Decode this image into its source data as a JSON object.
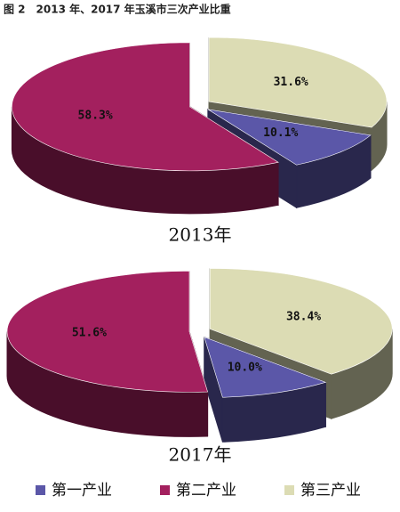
{
  "chart_data": {
    "type": "pie",
    "title": "图 2　2013 年、2017 年玉溪市三次产业比重",
    "categories": [
      "第一产业",
      "第二产业",
      "第三产业"
    ],
    "colors": [
      "#5b57a8",
      "#a3205e",
      "#dcdcb4"
    ],
    "series": [
      {
        "name": "2013年",
        "values": [
          10.1,
          58.3,
          31.6
        ],
        "value_labels": [
          "10.1%",
          "58.3%",
          "31.6%"
        ]
      },
      {
        "name": "2017年",
        "values": [
          10.0,
          51.6,
          38.4
        ],
        "value_labels": [
          "10.0%",
          "51.6%",
          "38.4%"
        ]
      }
    ]
  }
}
